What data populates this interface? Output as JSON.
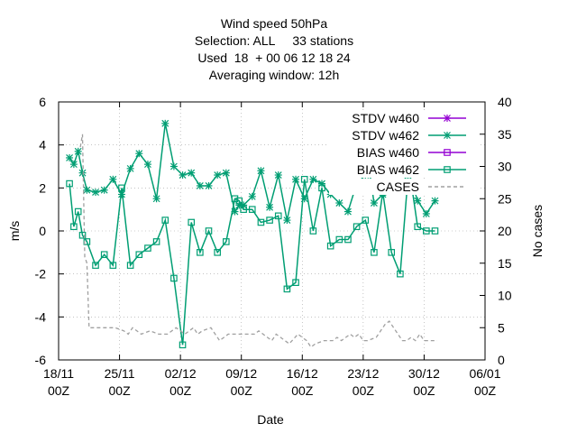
{
  "chart_data": {
    "type": "line",
    "title_lines": [
      "Wind speed 50hPa",
      "Selection: ALL     33 stations",
      "Used  18  + 00 06 12 18 24",
      "Averaging window: 12h"
    ],
    "xlabel": "Date",
    "ylabel": "m/s",
    "y2label": "No cases",
    "x_ticks": [
      "18/11\n00Z",
      "25/11\n00Z",
      "02/12\n00Z",
      "09/12\n00Z",
      "16/12\n00Z",
      "23/12\n00Z",
      "30/12\n00Z",
      "06/01\n00Z"
    ],
    "x_range_days": [
      0,
      49
    ],
    "ylim": [
      -6,
      6
    ],
    "y_ticks": [
      -6,
      -4,
      -2,
      0,
      2,
      4,
      6
    ],
    "y2lim": [
      0,
      40
    ],
    "y2_ticks": [
      0,
      5,
      10,
      15,
      20,
      25,
      30,
      35,
      40
    ],
    "legend": {
      "placement": "top-right"
    },
    "colors": {
      "w460": "#9400d3",
      "w462": "#009e73",
      "cases": "#a0a0a0"
    },
    "series": [
      {
        "name": "STDV w460",
        "marker": "star",
        "color": "#9400d3",
        "points": []
      },
      {
        "name": "STDV w462",
        "marker": "star",
        "color": "#009e73",
        "axis": "y",
        "points": [
          [
            1.25,
            3.4
          ],
          [
            1.75,
            3.1
          ],
          [
            2.25,
            3.7
          ],
          [
            2.75,
            2.7
          ],
          [
            3.25,
            1.9
          ],
          [
            4.25,
            1.8
          ],
          [
            5.25,
            1.9
          ],
          [
            6.25,
            2.4
          ],
          [
            7.25,
            1.7
          ],
          [
            8.25,
            2.9
          ],
          [
            9.25,
            3.6
          ],
          [
            10.25,
            3.1
          ],
          [
            11.25,
            1.5
          ],
          [
            12.25,
            5.0
          ],
          [
            13.25,
            3.0
          ],
          [
            14.25,
            2.6
          ],
          [
            15.25,
            2.7
          ],
          [
            16.25,
            2.1
          ],
          [
            17.25,
            2.1
          ],
          [
            18.25,
            2.6
          ],
          [
            19.25,
            2.7
          ],
          [
            20.25,
            0.9
          ],
          [
            20.75,
            1.2
          ],
          [
            21.25,
            1.2
          ],
          [
            22.25,
            1.6
          ],
          [
            23.25,
            2.8
          ],
          [
            24.25,
            1.1
          ],
          [
            25.25,
            2.6
          ],
          [
            26.25,
            0.5
          ],
          [
            27.25,
            2.4
          ],
          [
            28.25,
            1.5
          ],
          [
            29.25,
            2.4
          ],
          [
            30.25,
            2.2
          ],
          [
            31.25,
            1.7
          ],
          [
            32.25,
            1.3
          ],
          [
            33.25,
            0.9
          ],
          [
            34.25,
            2.2
          ],
          [
            35.25,
            2.6
          ],
          [
            35.75,
            2.7
          ],
          [
            36.25,
            1.3
          ],
          [
            37.25,
            1.7
          ],
          [
            38.25,
            2.0
          ],
          [
            39.25,
            2.1
          ],
          [
            40.25,
            2.7
          ],
          [
            41.25,
            1.4
          ],
          [
            42.25,
            0.8
          ],
          [
            43.25,
            1.4
          ]
        ]
      },
      {
        "name": "BIAS w460",
        "marker": "square",
        "color": "#9400d3",
        "points": []
      },
      {
        "name": "BIAS w462",
        "marker": "square",
        "color": "#009e73",
        "axis": "y",
        "points": [
          [
            1.25,
            2.2
          ],
          [
            1.75,
            0.2
          ],
          [
            2.25,
            0.9
          ],
          [
            2.75,
            -0.2
          ],
          [
            3.25,
            -0.5
          ],
          [
            4.25,
            -1.6
          ],
          [
            5.25,
            -1.1
          ],
          [
            6.25,
            -1.6
          ],
          [
            7.25,
            2.0
          ],
          [
            8.25,
            -1.6
          ],
          [
            9.25,
            -1.1
          ],
          [
            10.25,
            -0.8
          ],
          [
            11.25,
            -0.5
          ],
          [
            12.25,
            0.5
          ],
          [
            13.25,
            -2.2
          ],
          [
            14.25,
            -5.3
          ],
          [
            15.25,
            0.4
          ],
          [
            16.25,
            -1.0
          ],
          [
            17.25,
            0.0
          ],
          [
            18.25,
            -1.0
          ],
          [
            19.25,
            -0.5
          ],
          [
            20.25,
            1.5
          ],
          [
            20.75,
            1.4
          ],
          [
            21.25,
            1.0
          ],
          [
            22.25,
            1.0
          ],
          [
            23.25,
            0.4
          ],
          [
            24.25,
            0.5
          ],
          [
            25.25,
            0.7
          ],
          [
            26.25,
            -2.7
          ],
          [
            27.25,
            -2.4
          ],
          [
            28.25,
            2.4
          ],
          [
            29.25,
            0.0
          ],
          [
            30.25,
            2.0
          ],
          [
            31.25,
            -0.7
          ],
          [
            32.25,
            -0.4
          ],
          [
            33.25,
            -0.4
          ],
          [
            34.25,
            0.2
          ],
          [
            35.25,
            0.5
          ],
          [
            36.25,
            -1.0
          ],
          [
            37.25,
            1.8
          ],
          [
            38.25,
            -1.0
          ],
          [
            39.25,
            -2.0
          ],
          [
            40.25,
            3.0
          ],
          [
            41.25,
            0.2
          ],
          [
            42.25,
            0.0
          ],
          [
            43.25,
            0.0
          ]
        ]
      },
      {
        "name": "CASES",
        "style": "dashed",
        "color": "#a0a0a0",
        "axis": "y2",
        "points": [
          [
            2.5,
            33.0
          ],
          [
            2.75,
            35.0
          ],
          [
            3.0,
            16.0
          ],
          [
            3.25,
            15.0
          ],
          [
            3.5,
            5.0
          ],
          [
            4.5,
            5.0
          ],
          [
            5.5,
            5.0
          ],
          [
            6.5,
            5.0
          ],
          [
            7.5,
            4.5
          ],
          [
            8.0,
            4.0
          ],
          [
            8.5,
            5.0
          ],
          [
            9.5,
            4.0
          ],
          [
            10.5,
            4.5
          ],
          [
            11.5,
            4.0
          ],
          [
            12.5,
            4.0
          ],
          [
            13.5,
            5.0
          ],
          [
            14.5,
            4.0
          ],
          [
            15.5,
            5.0
          ],
          [
            16.0,
            4.0
          ],
          [
            16.5,
            4.5
          ],
          [
            17.5,
            5.0
          ],
          [
            18.5,
            3.0
          ],
          [
            19.5,
            4.0
          ],
          [
            20.5,
            4.0
          ],
          [
            21.5,
            4.0
          ],
          [
            22.5,
            4.0
          ],
          [
            23.0,
            4.5
          ],
          [
            23.5,
            4.0
          ],
          [
            24.5,
            3.0
          ],
          [
            25.0,
            4.0
          ],
          [
            25.5,
            3.5
          ],
          [
            26.5,
            2.5
          ],
          [
            27.5,
            4.0
          ],
          [
            28.0,
            3.5
          ],
          [
            28.5,
            3.0
          ],
          [
            29.0,
            2.0
          ],
          [
            29.5,
            2.5
          ],
          [
            30.5,
            3.0
          ],
          [
            31.5,
            3.0
          ],
          [
            32.0,
            3.5
          ],
          [
            32.5,
            3.0
          ],
          [
            33.5,
            4.0
          ],
          [
            34.0,
            3.5
          ],
          [
            34.5,
            4.0
          ],
          [
            35.0,
            3.0
          ],
          [
            35.5,
            3.0
          ],
          [
            36.5,
            3.5
          ],
          [
            37.5,
            5.5
          ],
          [
            38.0,
            6.0
          ],
          [
            38.5,
            5.0
          ],
          [
            39.5,
            3.0
          ],
          [
            40.0,
            3.0
          ],
          [
            40.5,
            3.5
          ],
          [
            41.0,
            3.0
          ],
          [
            41.5,
            4.0
          ],
          [
            42.0,
            3.0
          ],
          [
            43.5,
            3.0
          ]
        ]
      }
    ]
  }
}
